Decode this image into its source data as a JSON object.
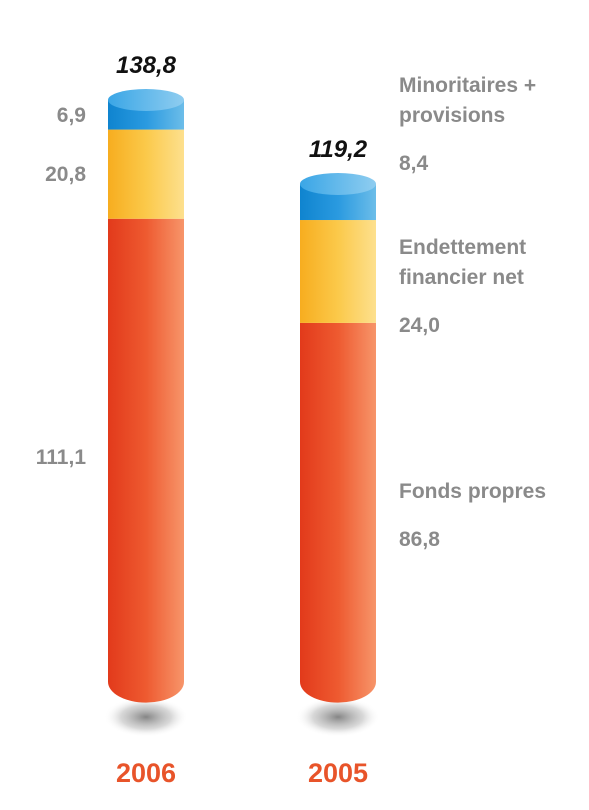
{
  "chart_data": {
    "type": "bar",
    "stacked": true,
    "categories": [
      "2006",
      "2005"
    ],
    "totals": [
      "138,8",
      "119,2"
    ],
    "series": [
      {
        "name": "Fonds propres",
        "values": [
          111.1,
          86.8
        ],
        "value_labels": [
          "111,1",
          "86,8"
        ],
        "color": "#e8542a"
      },
      {
        "name": "Endettement financier net",
        "values": [
          20.8,
          24.0
        ],
        "value_labels": [
          "20,8",
          "24,0"
        ],
        "color": "#f9b82e"
      },
      {
        "name": "Minoritaires + provisions",
        "values": [
          6.9,
          8.4
        ],
        "value_labels": [
          "6,9",
          "8,4"
        ],
        "color": "#1e8fd6"
      }
    ],
    "legend_lines": [
      [
        "Minoritaires +",
        "provisions"
      ],
      [
        "Endettement",
        "financier net"
      ],
      [
        "Fonds propres"
      ]
    ],
    "title": "",
    "xlabel": "",
    "ylabel": "",
    "legend_position": "right"
  }
}
